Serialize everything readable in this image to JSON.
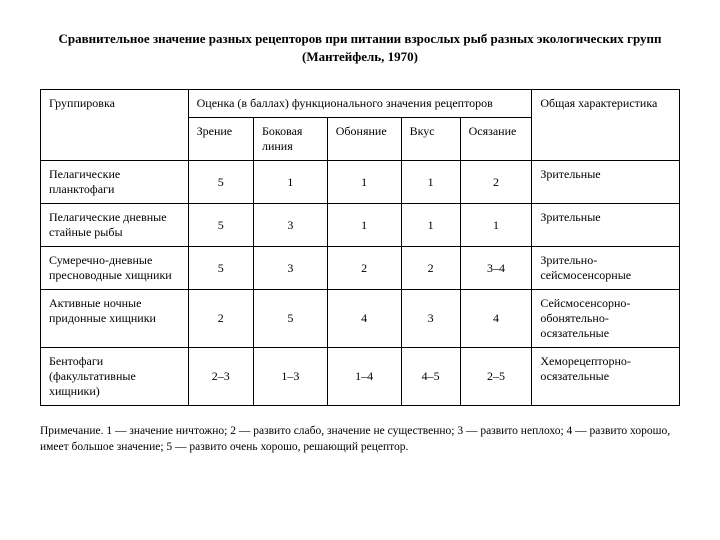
{
  "title": "Сравнительное значение разных рецепторов при питании взрослых рыб разных экологических групп (Мантейфель, 1970)",
  "header": {
    "group": "Группировка",
    "rating": "Оценка (в баллах) функционального значения рецепторов",
    "overall": "Общая характеристика",
    "cols": {
      "c1": "Зрение",
      "c2": "Боковая линия",
      "c3": "Обоняние",
      "c4": "Вкус",
      "c5": "Осязание"
    }
  },
  "rows": [
    {
      "grp": "Пелагические планктофаги",
      "v": [
        "5",
        "1",
        "1",
        "1",
        "2"
      ],
      "char": "Зрительные"
    },
    {
      "grp": "Пелагические дневные стайные рыбы",
      "v": [
        "5",
        "3",
        "1",
        "1",
        "1"
      ],
      "char": "Зрительные"
    },
    {
      "grp": "Сумеречно-дневные пресноводные хищники",
      "v": [
        "5",
        "3",
        "2",
        "2",
        "3–4"
      ],
      "char": "Зрительно-сейсмосенсорные"
    },
    {
      "grp": "Активные ночные придонные хищники",
      "v": [
        "2",
        "5",
        "4",
        "3",
        "4"
      ],
      "char": "Сейсмосенсорно-обонятельно-осязательные"
    },
    {
      "grp": "Бентофаги (факультативные хищники)",
      "v": [
        "2–3",
        "1–3",
        "1–4",
        "4–5",
        "2–5"
      ],
      "char": "Хеморецепторно-осязательные"
    }
  ],
  "note": "Примечание. 1 — значение ничтожно; 2 — развито слабо, значение не существенно; 3 — развито неплохо; 4 — развито хорошо, имеет большое значение; 5 — развито очень хорошо, решающий рецептор."
}
